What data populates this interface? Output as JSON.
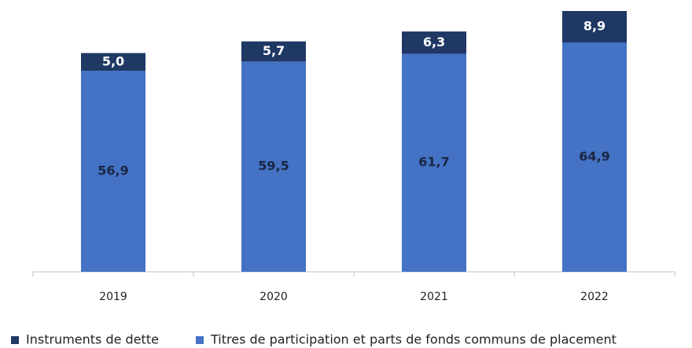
{
  "chart_data": {
    "type": "stacked_bar",
    "categories": [
      "2019",
      "2020",
      "2021",
      "2022"
    ],
    "series": [
      {
        "name": "Instruments de dette",
        "color": "#1f3864",
        "values": [
          5.0,
          5.7,
          6.3,
          8.9
        ],
        "value_labels": [
          "5,0",
          "5,7",
          "6,3",
          "8,9"
        ]
      },
      {
        "name": "Titres de participation et parts de fonds communs de placement",
        "color": "#4472c4",
        "values": [
          56.9,
          59.5,
          61.7,
          64.9
        ],
        "value_labels": [
          "56,9",
          "59,5",
          "61,7",
          "64,9"
        ]
      }
    ]
  }
}
